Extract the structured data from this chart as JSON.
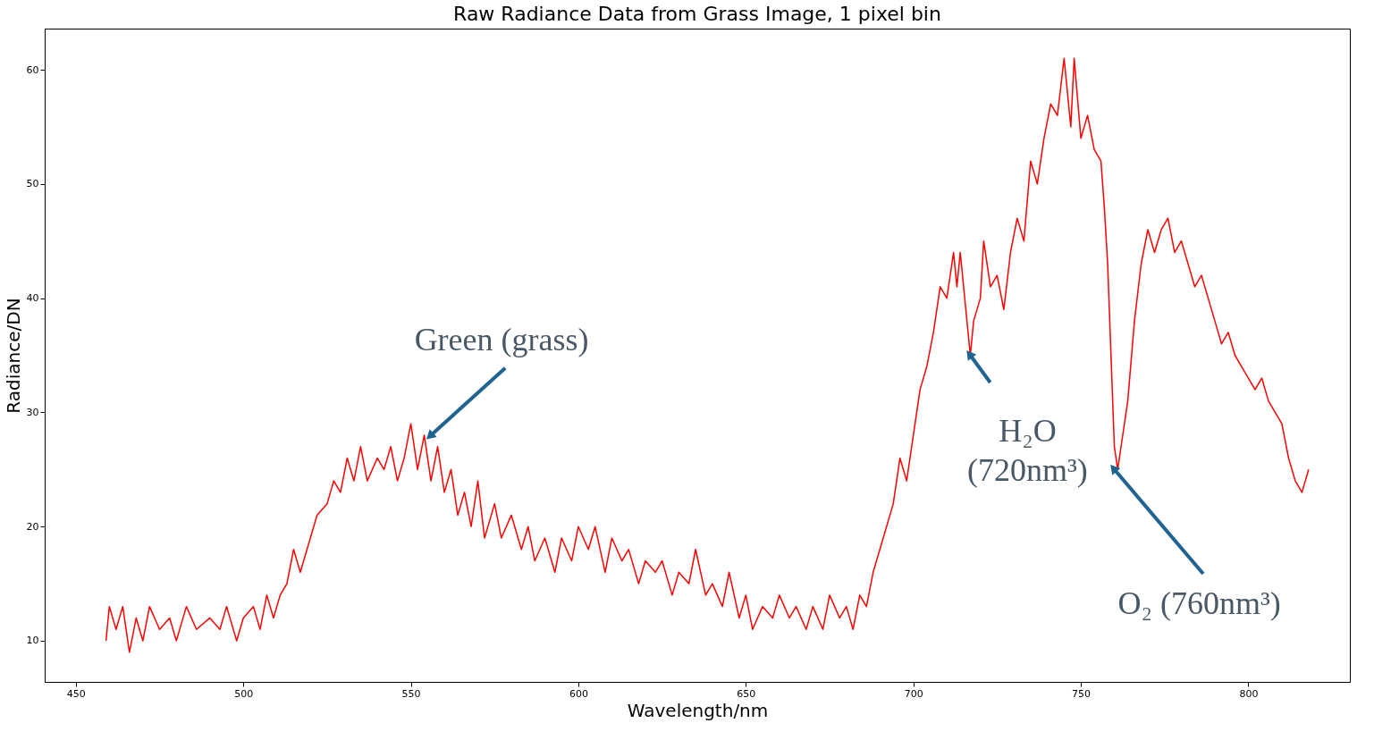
{
  "chart_data": {
    "type": "line",
    "title": "Raw Radiance Data from Grass Image, 1 pixel bin",
    "xlabel": "Wavelength/nm",
    "ylabel": "Radiance/DN",
    "x": [
      459,
      460,
      462,
      464,
      466,
      468,
      470,
      472,
      475,
      478,
      480,
      483,
      486,
      490,
      493,
      495,
      498,
      500,
      503,
      505,
      507,
      509,
      511,
      513,
      515,
      517,
      520,
      522,
      525,
      527,
      529,
      531,
      533,
      535,
      537,
      540,
      542,
      544,
      546,
      548,
      550,
      552,
      554,
      556,
      558,
      560,
      562,
      564,
      566,
      568,
      570,
      572,
      575,
      577,
      580,
      583,
      585,
      587,
      590,
      593,
      595,
      598,
      600,
      603,
      605,
      608,
      610,
      613,
      615,
      618,
      620,
      623,
      625,
      628,
      630,
      633,
      635,
      638,
      640,
      643,
      645,
      648,
      650,
      652,
      655,
      658,
      660,
      663,
      665,
      668,
      670,
      673,
      675,
      678,
      680,
      682,
      684,
      686,
      688,
      690,
      692,
      694,
      696,
      698,
      700,
      702,
      704,
      706,
      708,
      710,
      712,
      713,
      714,
      716,
      717,
      718,
      720,
      721,
      723,
      725,
      727,
      729,
      731,
      733,
      735,
      737,
      739,
      741,
      743,
      745,
      747,
      748,
      750,
      752,
      754,
      756,
      757,
      758,
      759,
      760,
      761,
      762,
      764,
      766,
      768,
      770,
      772,
      774,
      776,
      778,
      780,
      782,
      784,
      786,
      788,
      790,
      792,
      794,
      796,
      798,
      800,
      802,
      804,
      806,
      808,
      810,
      812,
      814,
      816,
      818
    ],
    "series": [
      {
        "color": "#ff0000",
        "values": [
          10,
          13,
          11,
          13,
          9,
          12,
          10,
          13,
          11,
          12,
          10,
          13,
          11,
          12,
          11,
          13,
          10,
          12,
          13,
          11,
          14,
          12,
          14,
          15,
          18,
          16,
          19,
          21,
          22,
          24,
          23,
          26,
          24,
          27,
          24,
          26,
          25,
          27,
          24,
          26,
          29,
          25,
          28,
          24,
          27,
          23,
          25,
          21,
          23,
          20,
          24,
          19,
          22,
          19,
          21,
          18,
          20,
          17,
          19,
          16,
          19,
          17,
          20,
          18,
          20,
          16,
          19,
          17,
          18,
          15,
          17,
          16,
          17,
          14,
          16,
          15,
          18,
          14,
          15,
          13,
          16,
          12,
          14,
          11,
          13,
          12,
          14,
          12,
          13,
          11,
          13,
          11,
          14,
          12,
          13,
          11,
          14,
          13,
          16,
          18,
          20,
          22,
          26,
          24,
          28,
          32,
          34,
          37,
          41,
          40,
          44,
          41,
          44,
          38,
          35,
          38,
          40,
          45,
          41,
          42,
          39,
          44,
          47,
          45,
          52,
          50,
          54,
          57,
          56,
          61,
          55,
          61,
          54,
          56,
          53,
          52,
          48,
          43,
          35,
          27,
          25,
          27,
          31,
          38,
          43,
          46,
          44,
          46,
          47,
          44,
          45,
          43,
          41,
          42,
          40,
          38,
          36,
          37,
          35,
          34,
          33,
          32,
          33,
          31,
          30,
          29,
          26,
          24,
          23,
          25
        ]
      }
    ],
    "xlim": [
      440.7,
      830.3
    ],
    "ylim": [
      6.4,
      63.6
    ],
    "xticks": [
      450,
      500,
      550,
      600,
      650,
      700,
      750,
      800
    ],
    "yticks": [
      10,
      20,
      30,
      40,
      50,
      60
    ],
    "grid": false,
    "annotations": [
      {
        "text": "Green (grass)",
        "x": 556,
        "y": 28
      },
      {
        "text": "H₂O (720nm³)",
        "x": 717,
        "y": 35
      },
      {
        "text": "O₂ (760nm³)",
        "x": 760,
        "y": 25
      }
    ]
  }
}
